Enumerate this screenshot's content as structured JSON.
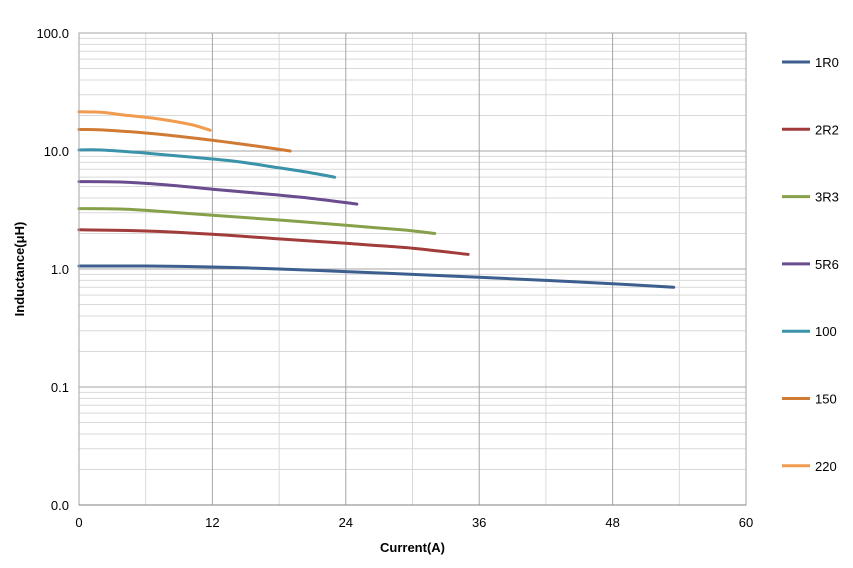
{
  "chart_data": {
    "type": "line",
    "xlabel": "Current(A)",
    "ylabel": "Inductance(μH)",
    "x_scale": "linear",
    "y_scale": "log",
    "xlim": [
      0,
      60
    ],
    "ylim": [
      0.01,
      100
    ],
    "x_ticks": [
      0,
      12,
      24,
      36,
      48,
      60
    ],
    "x_tick_labels": [
      "0",
      "12",
      "24",
      "36",
      "48",
      "60"
    ],
    "y_ticks": [
      0.01,
      0.1,
      1,
      10,
      100
    ],
    "y_tick_labels": [
      "0.0",
      "0.1",
      "1.0",
      "10.0",
      "100.0"
    ],
    "grid": true,
    "legend_position": "right",
    "series": [
      {
        "name": "1R0",
        "color": "#3c5f8f",
        "points": [
          [
            0,
            1.06
          ],
          [
            6,
            1.06
          ],
          [
            12,
            1.04
          ],
          [
            18,
            1.0
          ],
          [
            24,
            0.95
          ],
          [
            30,
            0.9
          ],
          [
            36,
            0.85
          ],
          [
            42,
            0.8
          ],
          [
            48,
            0.75
          ],
          [
            53.5,
            0.7
          ]
        ]
      },
      {
        "name": "2R2",
        "color": "#a13c3a",
        "points": [
          [
            0,
            2.15
          ],
          [
            6,
            2.1
          ],
          [
            12,
            1.97
          ],
          [
            18,
            1.8
          ],
          [
            24,
            1.65
          ],
          [
            30,
            1.5
          ],
          [
            35,
            1.33
          ]
        ]
      },
      {
        "name": "3R3",
        "color": "#87a04a",
        "points": [
          [
            0,
            3.25
          ],
          [
            4,
            3.22
          ],
          [
            8,
            3.05
          ],
          [
            12,
            2.85
          ],
          [
            18,
            2.6
          ],
          [
            24,
            2.35
          ],
          [
            29,
            2.15
          ],
          [
            32,
            2.0
          ]
        ]
      },
      {
        "name": "5R6",
        "color": "#6a4c8f",
        "points": [
          [
            0,
            5.5
          ],
          [
            4,
            5.45
          ],
          [
            8,
            5.15
          ],
          [
            12,
            4.75
          ],
          [
            16,
            4.4
          ],
          [
            20,
            4.05
          ],
          [
            24,
            3.65
          ],
          [
            25,
            3.55
          ]
        ]
      },
      {
        "name": "100",
        "color": "#3a93a8",
        "points": [
          [
            0,
            10.2
          ],
          [
            2,
            10.2
          ],
          [
            6,
            9.6
          ],
          [
            10,
            8.9
          ],
          [
            14,
            8.2
          ],
          [
            18,
            7.2
          ],
          [
            21,
            6.5
          ],
          [
            23,
            6.0
          ]
        ]
      },
      {
        "name": "150",
        "color": "#d07a33",
        "points": [
          [
            0,
            15.2
          ],
          [
            2,
            15.1
          ],
          [
            6,
            14.2
          ],
          [
            10,
            13.0
          ],
          [
            13,
            12.0
          ],
          [
            16,
            11.0
          ],
          [
            19,
            10.0
          ]
        ]
      },
      {
        "name": "220",
        "color": "#f19b4e",
        "points": [
          [
            0,
            21.5
          ],
          [
            2,
            21.3
          ],
          [
            4,
            20.2
          ],
          [
            7,
            18.8
          ],
          [
            10,
            16.8
          ],
          [
            11.8,
            15.0
          ]
        ]
      }
    ]
  }
}
